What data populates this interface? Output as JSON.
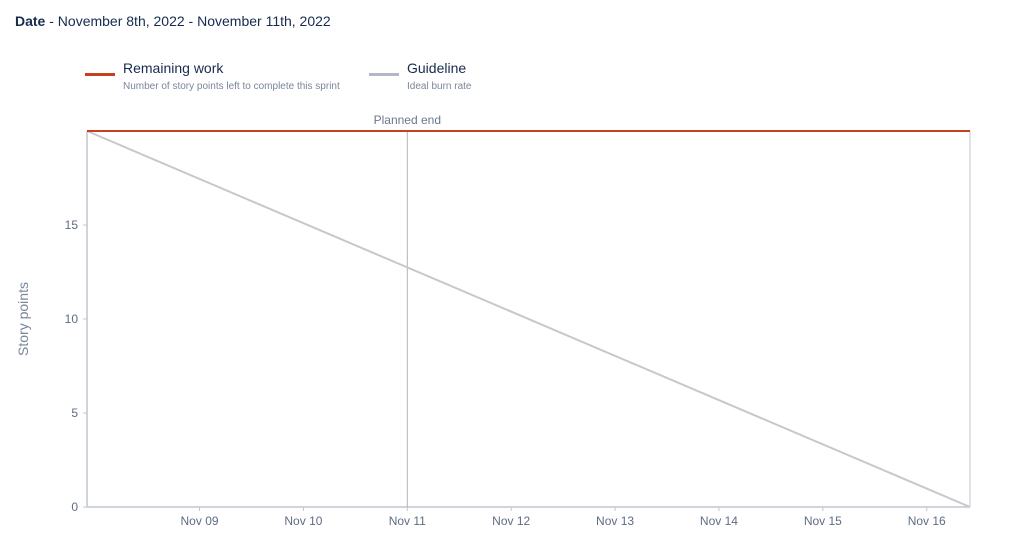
{
  "header": {
    "date_label": "Date",
    "date_range": "- November 8th, 2022 - November 11th, 2022"
  },
  "colors": {
    "remaining": "#c9401f",
    "guideline": "#b3b9c4",
    "guideline_line": "#c8c8c8",
    "axis": "#c1c7d0",
    "marker": "#b3b3b3"
  },
  "legend": {
    "remaining_title": "Remaining work",
    "remaining_sub": "Number of story points left to complete this sprint",
    "guideline_title": "Guideline",
    "guideline_sub": "Ideal burn rate"
  },
  "chart_data": {
    "type": "line",
    "title": "",
    "xlabel": "",
    "ylabel": "Story points",
    "x_categories": [
      "Nov 09",
      "Nov 10",
      "Nov 11",
      "Nov 12",
      "Nov 13",
      "Nov 14",
      "Nov 15",
      "Nov 16"
    ],
    "xlim": [
      "2022-11-08 10:00",
      "2022-11-16 22:00"
    ],
    "ylim": [
      0,
      20
    ],
    "yticks": [
      0,
      5,
      10,
      15
    ],
    "grid": false,
    "legend_position": "top-left",
    "series": [
      {
        "name": "Remaining work",
        "points": [
          {
            "x": "2022-11-08 10:00",
            "y": 20
          },
          {
            "x": "2022-11-16 22:00",
            "y": 20
          }
        ]
      },
      {
        "name": "Guideline",
        "points": [
          {
            "x": "2022-11-08 10:00",
            "y": 20
          },
          {
            "x": "2022-11-16 22:00",
            "y": 0
          }
        ]
      }
    ],
    "annotations": [
      {
        "label": "Planned end",
        "x": "2022-11-11 12:00"
      }
    ]
  }
}
